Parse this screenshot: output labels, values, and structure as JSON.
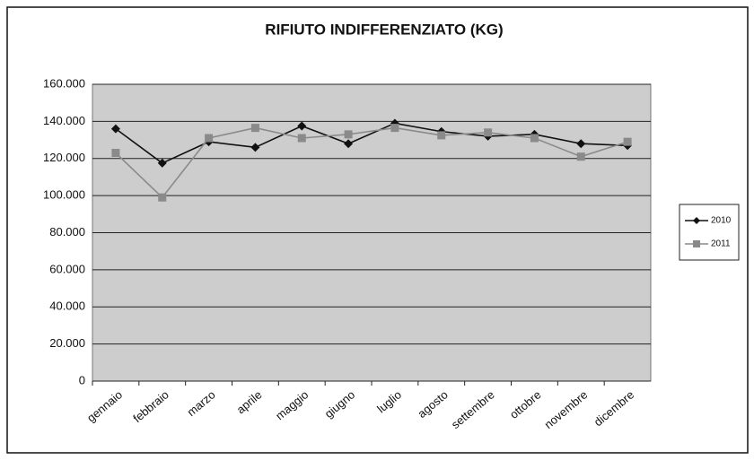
{
  "chart_data": {
    "type": "line",
    "title": "RIFIUTO INDIFFERENZIATO (KG)",
    "categories": [
      "gennaio",
      "febbraio",
      "marzo",
      "aprile",
      "maggio",
      "giugno",
      "luglio",
      "agosto",
      "settembre",
      "ottobre",
      "novembre",
      "dicembre"
    ],
    "series": [
      {
        "name": "2010",
        "color": "#111111",
        "values": [
          136000,
          117500,
          129000,
          126000,
          137500,
          128000,
          139000,
          134500,
          132000,
          133000,
          128000,
          127000
        ]
      },
      {
        "name": "2011",
        "color": "#8a8a8a",
        "values": [
          123000,
          99000,
          131000,
          136500,
          131000,
          133000,
          136500,
          132500,
          134000,
          131000,
          121000,
          129000
        ]
      }
    ],
    "ylim": [
      0,
      160000
    ],
    "yticks": [
      0,
      {
        "value": 20000,
        "label": "20.000"
      },
      {
        "value": 40000,
        "label": "40.000"
      },
      {
        "value": 60000,
        "label": "60.000"
      },
      {
        "value": 80000,
        "label": "80.000"
      },
      {
        "value": 100000,
        "label": "100.000"
      },
      {
        "value": 120000,
        "label": "120.000"
      },
      {
        "value": 140000,
        "label": "140.000"
      },
      {
        "value": 160000,
        "label": "160.000"
      }
    ],
    "grid": true,
    "legend": "right"
  }
}
